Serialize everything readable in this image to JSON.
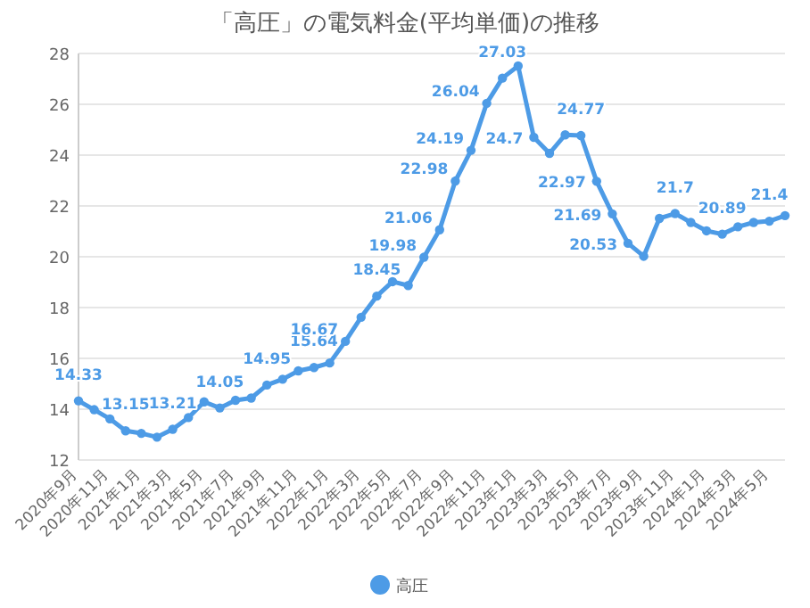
{
  "chart_data": {
    "type": "line",
    "title": "「高圧」の電気料金(平均単価)の推移",
    "categories": [
      "2020年9月",
      null,
      "2020年11月",
      null,
      "2021年1月",
      null,
      "2021年3月",
      null,
      "2021年5月",
      null,
      "2021年7月",
      null,
      "2021年9月",
      null,
      "2021年11月",
      null,
      "2022年1月",
      null,
      "2022年3月",
      null,
      "2022年5月",
      null,
      "2022年7月",
      null,
      "2022年9月",
      null,
      "2022年11月",
      null,
      "2023年1月",
      null,
      "2023年3月",
      null,
      "2023年5月",
      null,
      "2023年7月",
      null,
      "2023年9月",
      null,
      "2023年11月",
      null,
      "2024年1月",
      null,
      "2024年3月",
      null,
      "2024年5月",
      null
    ],
    "series": [
      {
        "name": "高圧",
        "color": "#4d9be6",
        "values": [
          14.33,
          13.98,
          13.62,
          13.15,
          13.05,
          12.9,
          13.21,
          13.67,
          14.29,
          14.05,
          14.35,
          14.44,
          14.95,
          15.18,
          15.51,
          15.64,
          15.82,
          16.67,
          17.62,
          18.45,
          19.02,
          18.87,
          19.98,
          21.06,
          22.98,
          24.19,
          26.04,
          27.03,
          27.51,
          24.7,
          24.07,
          24.8,
          24.77,
          22.97,
          21.69,
          20.53,
          20.02,
          21.51,
          21.7,
          21.35,
          21.02,
          20.89,
          21.18,
          21.35,
          21.4,
          21.62
        ],
        "value_labels": [
          "14.33",
          null,
          null,
          "13.15",
          null,
          null,
          "13.21",
          null,
          null,
          "14.05",
          null,
          null,
          "14.95",
          null,
          null,
          "15.64",
          null,
          "16.67",
          null,
          "18.45",
          null,
          null,
          "19.98",
          "21.06",
          "22.98",
          "24.19",
          "26.04",
          "27.03",
          null,
          "24.7",
          null,
          null,
          "24.77",
          "22.97",
          "21.69",
          "20.53",
          null,
          null,
          "21.7",
          null,
          null,
          "20.89",
          null,
          null,
          "21.4",
          null
        ]
      }
    ],
    "ylim": [
      12,
      28
    ],
    "yticks": [
      12,
      14,
      16,
      18,
      20,
      22,
      24,
      26,
      28
    ],
    "grid": "y",
    "legend": "bottom",
    "marker": "circle"
  }
}
